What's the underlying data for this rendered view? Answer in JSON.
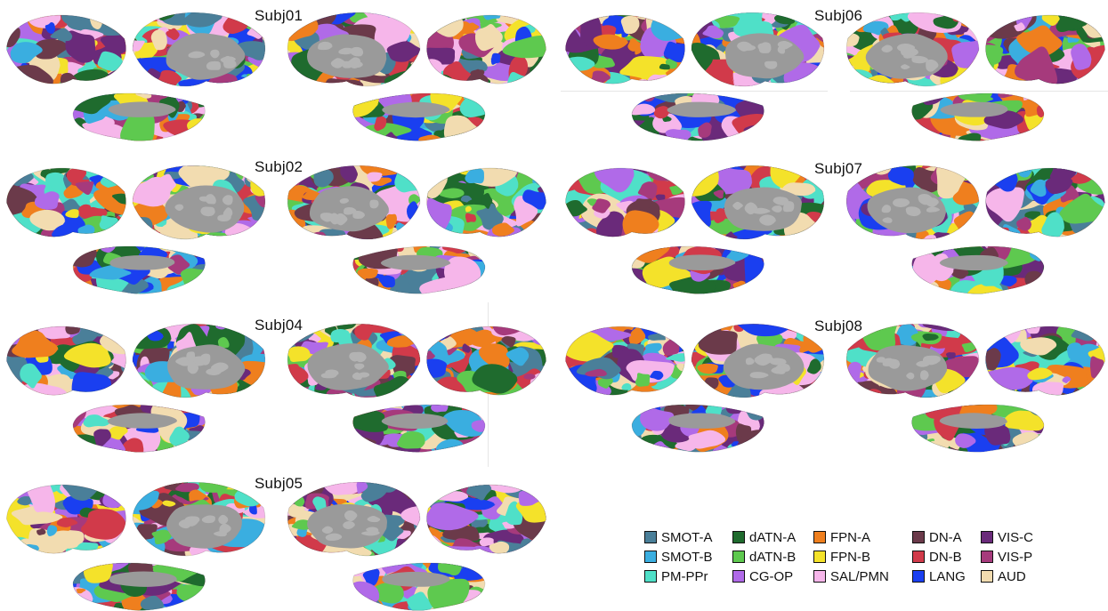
{
  "figure": {
    "subjects": [
      {
        "label": "Subj01"
      },
      {
        "label": "Subj02"
      },
      {
        "label": "Subj04"
      },
      {
        "label": "Subj05"
      },
      {
        "label": "Subj06"
      },
      {
        "label": "Subj07"
      },
      {
        "label": "Subj08"
      }
    ]
  },
  "legend": {
    "items": [
      {
        "label": "SMOT-A",
        "color": "#4a7f99"
      },
      {
        "label": "SMOT-B",
        "color": "#3aaee0"
      },
      {
        "label": "PM-PPr",
        "color": "#4fe0c8"
      },
      {
        "label": "dATN-A",
        "color": "#1f6b2e"
      },
      {
        "label": "dATN-B",
        "color": "#5ec94f"
      },
      {
        "label": "CG-OP",
        "color": "#b06ae8"
      },
      {
        "label": "FPN-A",
        "color": "#ef7f1e"
      },
      {
        "label": "FPN-B",
        "color": "#f4e22a"
      },
      {
        "label": "SAL/PMN",
        "color": "#f6b6ea"
      },
      {
        "label": "DN-A",
        "color": "#6b3a4a"
      },
      {
        "label": "DN-B",
        "color": "#d13a4a"
      },
      {
        "label": "LANG",
        "color": "#1a3ff0"
      },
      {
        "label": "VIS-C",
        "color": "#6a2a7a"
      },
      {
        "label": "VIS-P",
        "color": "#a63a7c"
      },
      {
        "label": "AUD",
        "color": "#f2dcb0"
      }
    ]
  }
}
